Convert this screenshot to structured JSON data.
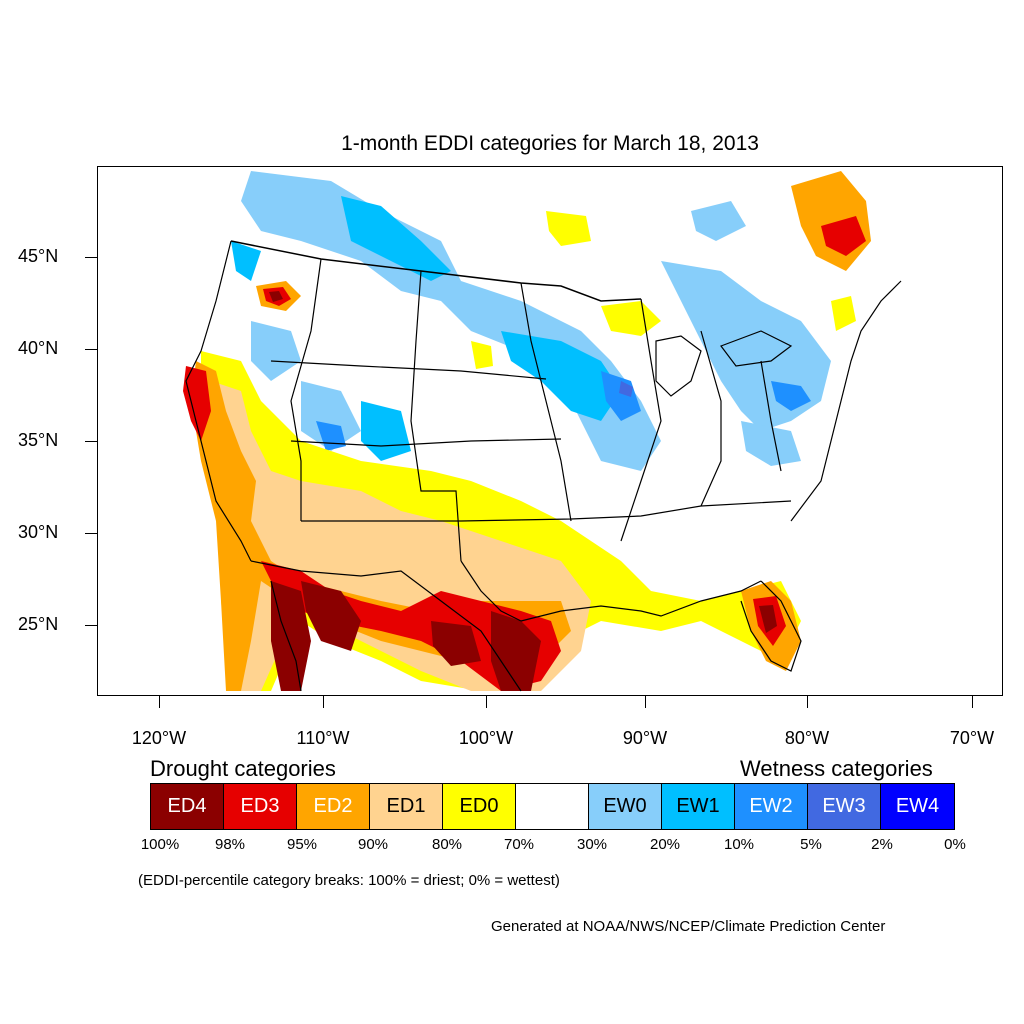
{
  "title": "1-month EDDI categories for March 18, 2013",
  "lat_labels": [
    "45°N",
    "40°N",
    "35°N",
    "30°N",
    "25°N"
  ],
  "lon_labels": [
    "120°W",
    "110°W",
    "100°W",
    "90°W",
    "80°W",
    "70°W"
  ],
  "legend": {
    "drought_heading": "Drought categories",
    "wetness_heading": "Wetness categories",
    "categories": [
      {
        "label": "ED4",
        "color": "#8b0000",
        "text_color": "#ffffff"
      },
      {
        "label": "ED3",
        "color": "#e60000",
        "text_color": "#ffffff"
      },
      {
        "label": "ED2",
        "color": "#ffa500",
        "text_color": "#ffffff"
      },
      {
        "label": "ED1",
        "color": "#ffd390",
        "text_color": "#000000"
      },
      {
        "label": "ED0",
        "color": "#ffff00",
        "text_color": "#000000"
      },
      {
        "label": "",
        "color": "#ffffff",
        "text_color": "#000000"
      },
      {
        "label": "EW0",
        "color": "#87cefa",
        "text_color": "#000000"
      },
      {
        "label": "EW1",
        "color": "#00bfff",
        "text_color": "#000000"
      },
      {
        "label": "EW2",
        "color": "#1e90ff",
        "text_color": "#ffffff"
      },
      {
        "label": "EW3",
        "color": "#4169e1",
        "text_color": "#ffffff"
      },
      {
        "label": "EW4",
        "color": "#0000ff",
        "text_color": "#ffffff"
      }
    ],
    "breaks": [
      "100%",
      "98%",
      "95%",
      "90%",
      "80%",
      "70%",
      "30%",
      "20%",
      "10%",
      "5%",
      "2%",
      "0%"
    ]
  },
  "note": "(EDDI-percentile category breaks: 100% = driest; 0% = wettest)",
  "credit": "Generated at NOAA/NWS/NCEP/Climate Prediction Center"
}
